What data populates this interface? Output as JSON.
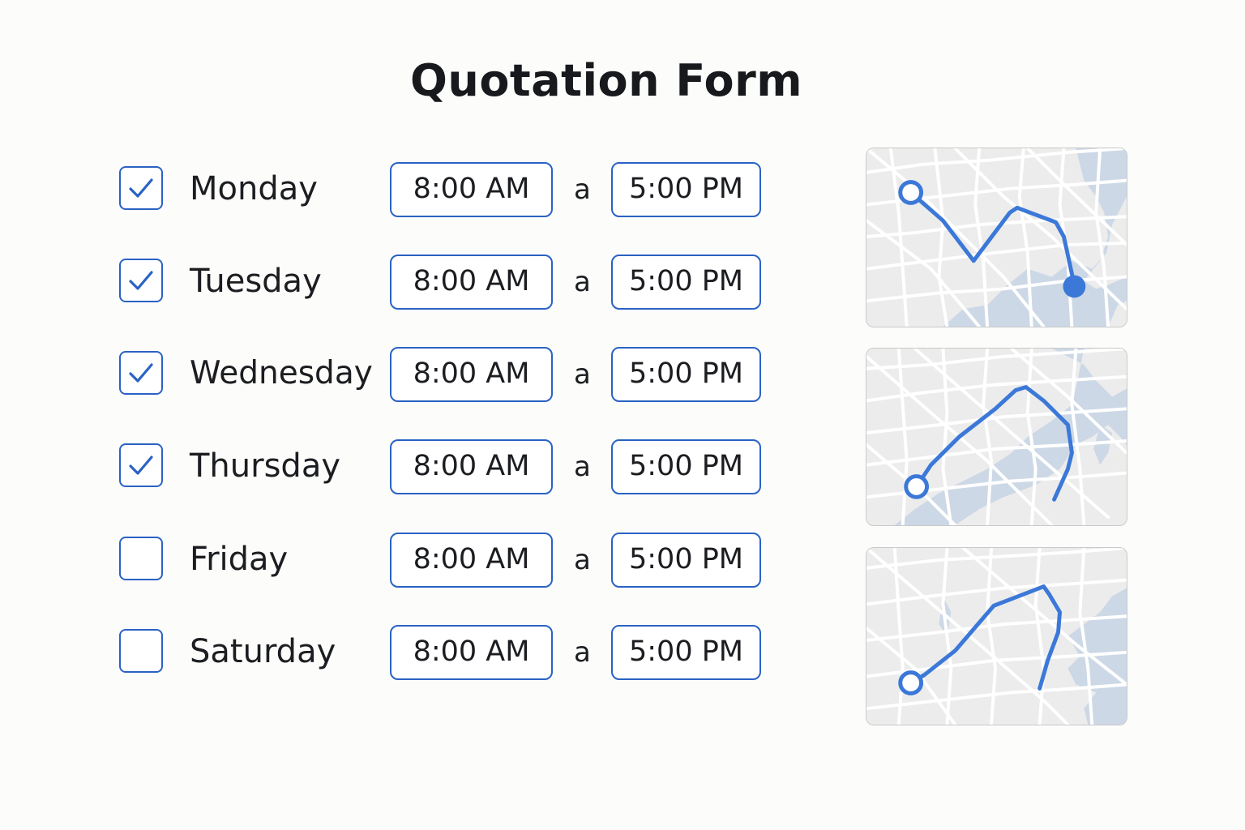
{
  "form": {
    "title": "Quotation Form",
    "separator": "a",
    "rows": [
      {
        "day": "Monday",
        "checked": true,
        "start": "8:00 AM",
        "end": "5:00 PM"
      },
      {
        "day": "Tuesday",
        "checked": true,
        "start": "8:00 AM",
        "end": "5:00 PM"
      },
      {
        "day": "Wednesday",
        "checked": true,
        "start": "8:00 AM",
        "end": "5:00 PM"
      },
      {
        "day": "Thursday",
        "checked": true,
        "start": "8:00 AM",
        "end": "5:00 PM"
      },
      {
        "day": "Friday",
        "checked": false,
        "start": "8:00 AM",
        "end": "5:00 PM"
      },
      {
        "day": "Saturday",
        "checked": false,
        "start": "8:00 AM",
        "end": "5:00 PM"
      }
    ]
  },
  "maps": [
    {
      "name": "route-map-1",
      "markers": [
        "start",
        "end"
      ]
    },
    {
      "name": "route-map-2",
      "markers": [
        "start"
      ]
    },
    {
      "name": "route-map-3",
      "markers": [
        "start"
      ]
    }
  ],
  "colors": {
    "accent": "#2a62c4",
    "route": "#3b78d8",
    "map_land": "#ececec",
    "map_water": "#cdd8e6",
    "map_road": "#ffffff",
    "background": "#fcfcfa"
  }
}
